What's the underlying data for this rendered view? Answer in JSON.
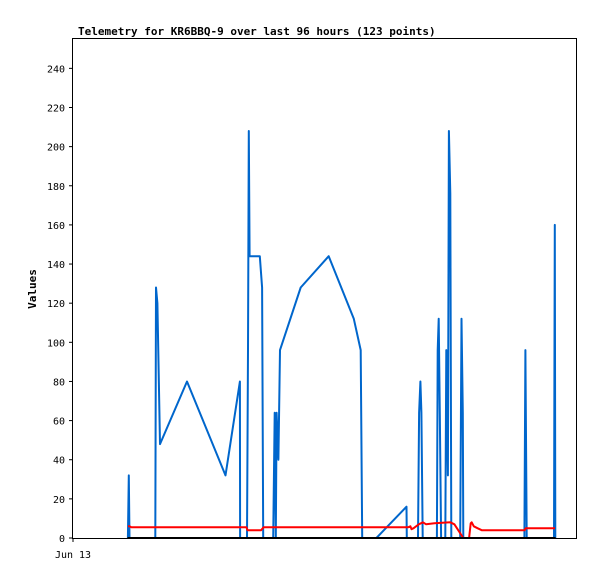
{
  "chart_data": {
    "type": "line",
    "title": "Telemetry for KR6BBQ-9 over last 96 hours (123 points)",
    "ylabel": "Values",
    "xlabel": "",
    "ylim": [
      0,
      255
    ],
    "xlim": [
      0,
      96
    ],
    "y_ticks": [
      0,
      20,
      40,
      60,
      80,
      100,
      120,
      140,
      160,
      180,
      200,
      220,
      240
    ],
    "x_ticks": [
      {
        "x": 0,
        "label": "Jun 13"
      }
    ],
    "grid": false,
    "colors": {
      "blue": "#0066cc",
      "red": "#ff0000",
      "black": "#000000"
    },
    "series": [
      {
        "color": "#0066cc",
        "points": [
          [
            10.48,
            0
          ],
          [
            10.65,
            32
          ],
          [
            10.78,
            0
          ],
          [
            15.7,
            0
          ],
          [
            15.85,
            128
          ],
          [
            16.1,
            120
          ],
          [
            16.6,
            48
          ],
          [
            21.75,
            80
          ],
          [
            29.1,
            32
          ],
          [
            31.85,
            80
          ],
          [
            31.9,
            0
          ],
          [
            33.2,
            0
          ],
          [
            33.4,
            96
          ],
          [
            33.55,
            208
          ],
          [
            33.7,
            144
          ],
          [
            35.65,
            144
          ],
          [
            36.1,
            128
          ],
          [
            36.3,
            0
          ],
          [
            38.2,
            0
          ],
          [
            38.5,
            64
          ],
          [
            38.7,
            0
          ],
          [
            38.85,
            64
          ],
          [
            39.2,
            40
          ],
          [
            39.5,
            96
          ],
          [
            43.45,
            128
          ],
          [
            48.8,
            144
          ],
          [
            53.6,
            112
          ],
          [
            54.9,
            96
          ],
          [
            55.2,
            0
          ],
          [
            57.9,
            0
          ],
          [
            63.65,
            16
          ],
          [
            63.7,
            0
          ],
          [
            65.85,
            0
          ],
          [
            66.05,
            64
          ],
          [
            66.3,
            80
          ],
          [
            66.5,
            64
          ],
          [
            66.75,
            0
          ],
          [
            69.45,
            0
          ],
          [
            69.6,
            96
          ],
          [
            69.8,
            112
          ],
          [
            70.0,
            64
          ],
          [
            70.25,
            0
          ],
          [
            71.05,
            0
          ],
          [
            71.25,
            96
          ],
          [
            71.55,
            32
          ],
          [
            71.75,
            208
          ],
          [
            72.0,
            176
          ],
          [
            72.2,
            0
          ],
          [
            73.9,
            0
          ],
          [
            74.15,
            112
          ],
          [
            74.4,
            64
          ],
          [
            74.5,
            0
          ],
          [
            86.15,
            0
          ],
          [
            86.35,
            96
          ],
          [
            86.6,
            0
          ],
          [
            91.8,
            0
          ],
          [
            91.95,
            160
          ],
          [
            92.05,
            0
          ]
        ]
      },
      {
        "color": "#ff0000",
        "points": [
          [
            10.5,
            6
          ],
          [
            10.8,
            6
          ],
          [
            11.1,
            5.5
          ],
          [
            33.1,
            5.5
          ],
          [
            33.3,
            4
          ],
          [
            35.7,
            4
          ],
          [
            35.9,
            4
          ],
          [
            36.4,
            5.5
          ],
          [
            64.0,
            5.5
          ],
          [
            64.4,
            6
          ],
          [
            64.6,
            4.5
          ],
          [
            65.0,
            5
          ],
          [
            66.0,
            7
          ],
          [
            66.8,
            8
          ],
          [
            67.4,
            7
          ],
          [
            69.0,
            7.5
          ],
          [
            72.0,
            8
          ],
          [
            72.8,
            7
          ],
          [
            74.5,
            0
          ],
          [
            75.6,
            0
          ],
          [
            75.9,
            7.5
          ],
          [
            76.1,
            8
          ],
          [
            76.5,
            6
          ],
          [
            77.2,
            5
          ],
          [
            78.0,
            4
          ],
          [
            86.2,
            4
          ],
          [
            86.4,
            5
          ],
          [
            92.0,
            5
          ]
        ]
      },
      {
        "color": "#000000",
        "points": [
          [
            10.4,
            0
          ],
          [
            92.1,
            0
          ]
        ]
      }
    ]
  }
}
